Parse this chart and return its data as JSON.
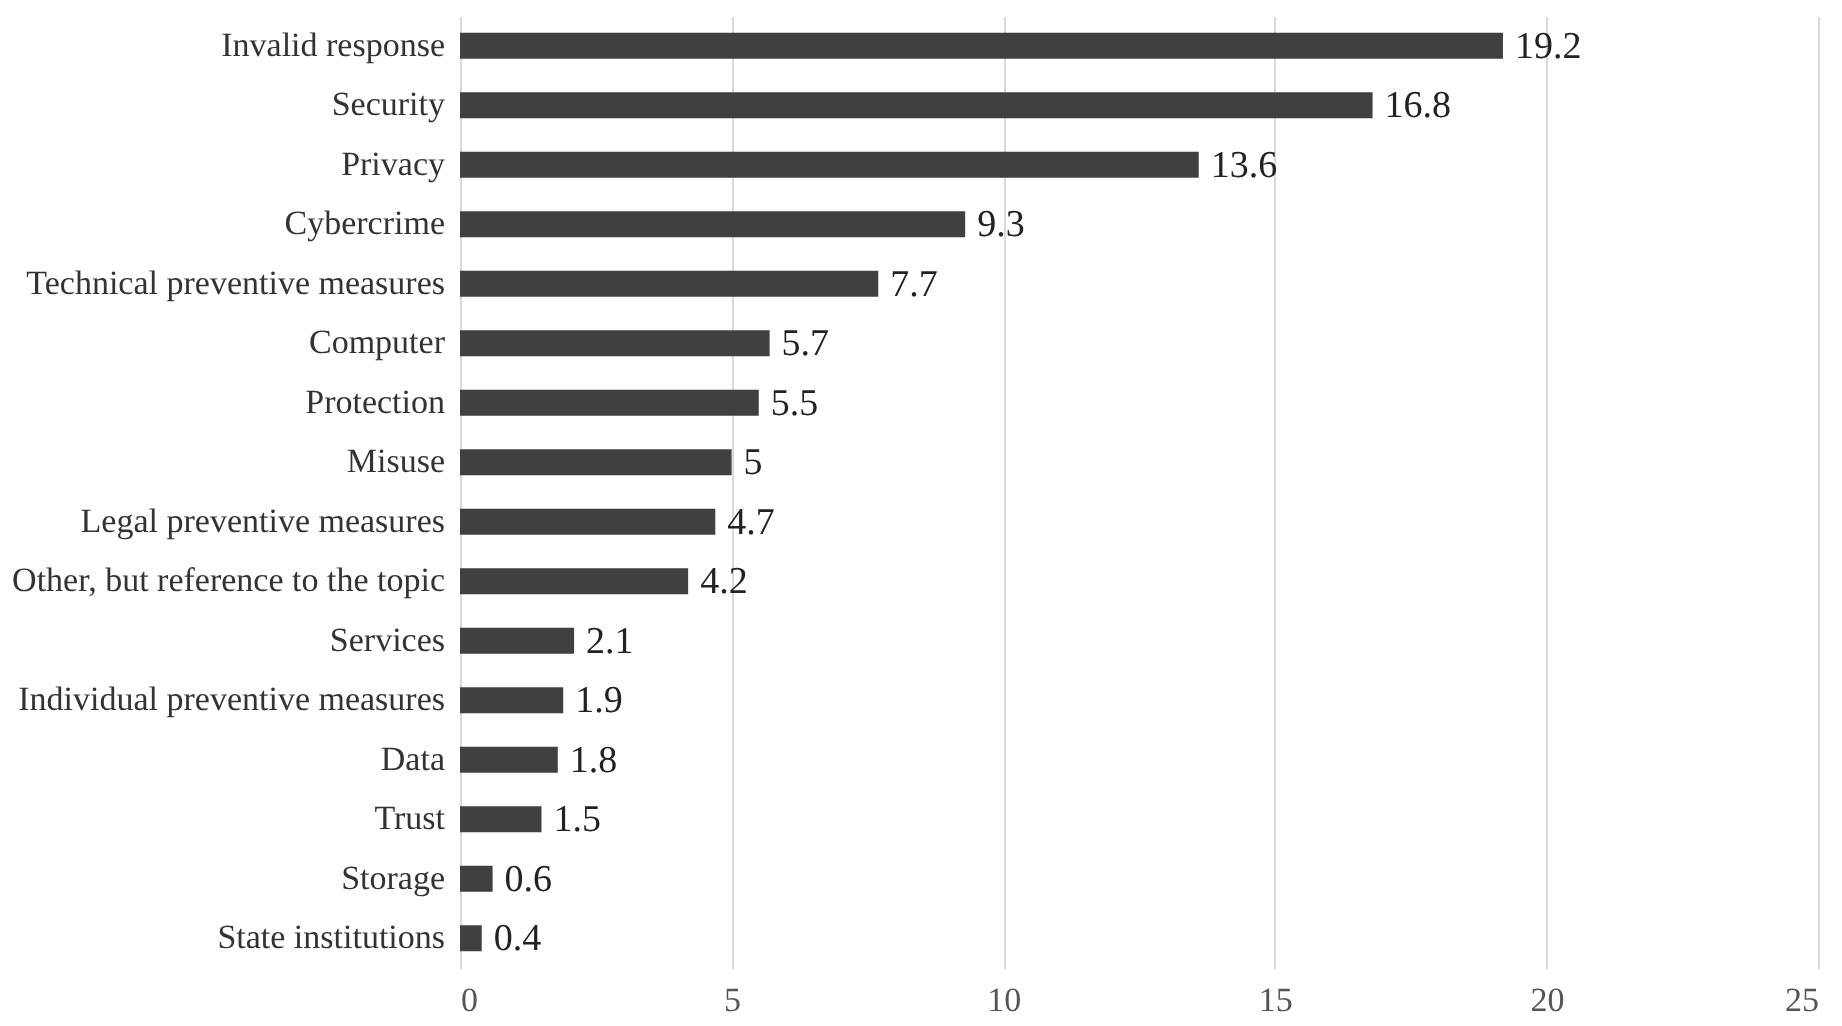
{
  "chart_data": {
    "type": "bar",
    "orientation": "horizontal",
    "categories": [
      "Invalid response",
      "Security",
      "Privacy",
      "Cybercrime",
      "Technical preventive measures",
      "Computer",
      "Protection",
      "Misuse",
      "Legal preventive measures",
      "Other, but reference to the topic",
      "Services",
      "Individual preventive measures",
      "Data",
      "Trust",
      "Storage",
      "State institutions"
    ],
    "values": [
      19.2,
      16.8,
      13.6,
      9.3,
      7.7,
      5.7,
      5.5,
      5,
      4.7,
      4.2,
      2.1,
      1.9,
      1.8,
      1.5,
      0.6,
      0.4
    ],
    "color": "#404040",
    "xlim": [
      0,
      25
    ],
    "xticks": [
      0,
      5,
      10,
      15,
      20,
      25
    ],
    "grid": "x",
    "data_labels": true
  }
}
